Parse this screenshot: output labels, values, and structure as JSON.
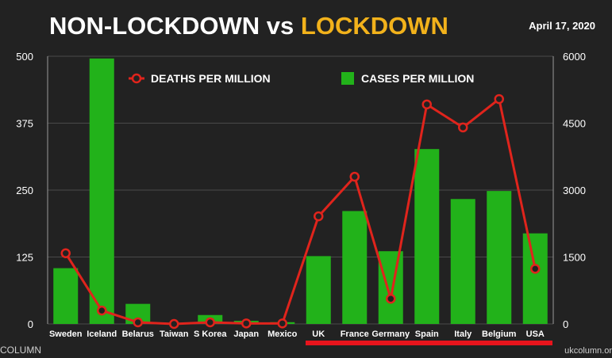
{
  "header": {
    "title_part1": "NON-LOCKDOWN vs ",
    "title_part2": "LOCKDOWN",
    "date": "April 17, 2020"
  },
  "footer": {
    "left": "COLUMN",
    "right": "ukcolumn.or"
  },
  "colors": {
    "background": "#222222",
    "bars": "#22b21a",
    "line": "#e0241c",
    "highlight_underline": "#e8141c",
    "title_white": "#ffffff",
    "title_accent": "#f2b21b"
  },
  "chart_data": {
    "type": "bar",
    "categories": [
      "Sweden",
      "Iceland",
      "Belarus",
      "Taiwan",
      "S Korea",
      "Japan",
      "Mexico",
      "UK",
      "France",
      "Germany",
      "Spain",
      "Italy",
      "Belgium",
      "USA"
    ],
    "series": [
      {
        "name": "CASES PER MILLION",
        "type": "bar",
        "axis": "right",
        "values": [
          1250,
          5950,
          450,
          20,
          200,
          70,
          40,
          1520,
          2530,
          1630,
          3920,
          2800,
          2980,
          2030
        ]
      },
      {
        "name": "DEATHS PER MILLION",
        "type": "line",
        "axis": "left",
        "values": [
          132,
          25,
          3,
          0,
          3,
          1,
          1,
          201,
          275,
          47,
          410,
          367,
          420,
          103
        ]
      }
    ],
    "left_axis": {
      "ylim": [
        0,
        500
      ],
      "ticks": [
        "0",
        "125",
        "250",
        "375",
        "500"
      ]
    },
    "right_axis": {
      "ylim": [
        0,
        6000
      ],
      "ticks": [
        "0",
        "1500",
        "3000",
        "4500",
        "6000"
      ]
    },
    "grid": "horizontal",
    "legend_position": "top",
    "highlighted_categories": [
      "UK",
      "France",
      "Germany",
      "Spain",
      "Italy",
      "Belgium",
      "USA"
    ]
  }
}
